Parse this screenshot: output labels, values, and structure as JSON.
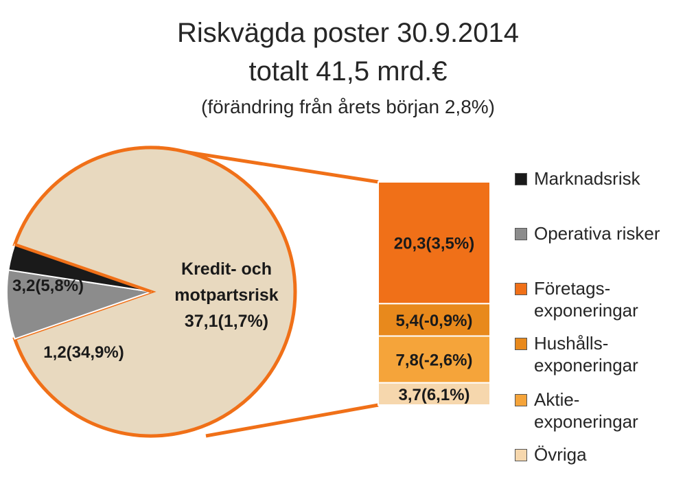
{
  "title": "Riskvägda poster 30.9.2014",
  "title_line2": "totalt  41,5 mrd.€",
  "subtitle": "(förändring från årets början 2,8%)",
  "chart_data": [
    {
      "type": "pie",
      "slices": [
        {
          "name": "Kredit- och motpartsrisk",
          "value": 37.1,
          "change_pct": 1.7,
          "label_lines": [
            "Kredit- och",
            "motpartsrisk",
            "37,1(1,7%)"
          ],
          "color": "#e8d9bf"
        },
        {
          "name": "Marknadsrisk",
          "value": 1.2,
          "change_pct": 34.9,
          "label_lines": [
            "1,2(34,9%)"
          ],
          "color": "#1a1a1a"
        },
        {
          "name": "Operativa risker",
          "value": 3.2,
          "change_pct": 5.8,
          "label_lines": [
            "3,2(5,8%)"
          ],
          "color": "#8c8c8c"
        }
      ]
    },
    {
      "type": "bar",
      "stacked": true,
      "breakdown_of": "Kredit- och motpartsrisk",
      "segments": [
        {
          "name": "Företags-exponeringar",
          "value": 20.3,
          "change_pct": 3.5,
          "label": "20,3(3,5%)",
          "color": "#f07018"
        },
        {
          "name": "Hushålls-exponeringar",
          "value": 5.4,
          "change_pct": -0.9,
          "label": "5,4(-0,9%)",
          "color": "#e8891c"
        },
        {
          "name": "Aktie-exponeringar",
          "value": 7.8,
          "change_pct": -2.6,
          "label": "7,8(-2,6%)",
          "color": "#f5a43a"
        },
        {
          "name": "Övriga",
          "value": 3.7,
          "change_pct": 6.1,
          "label": "3,7(6,1%)",
          "color": "#f6d7ad"
        }
      ]
    }
  ],
  "legend": [
    {
      "label": "Marknadsrisk",
      "color": "#1a1a1a"
    },
    {
      "label": "Operativa risker",
      "color": "#8c8c8c"
    },
    {
      "label": "Företags-\nexponeringar",
      "color": "#f07018"
    },
    {
      "label": "Hushålls-\nexponeringar",
      "color": "#e8891c"
    },
    {
      "label": "Aktie-\nexponeringar",
      "color": "#f5a43a"
    },
    {
      "label": "Övriga",
      "color": "#f6d7ad"
    }
  ],
  "connector_color": "#f07018"
}
